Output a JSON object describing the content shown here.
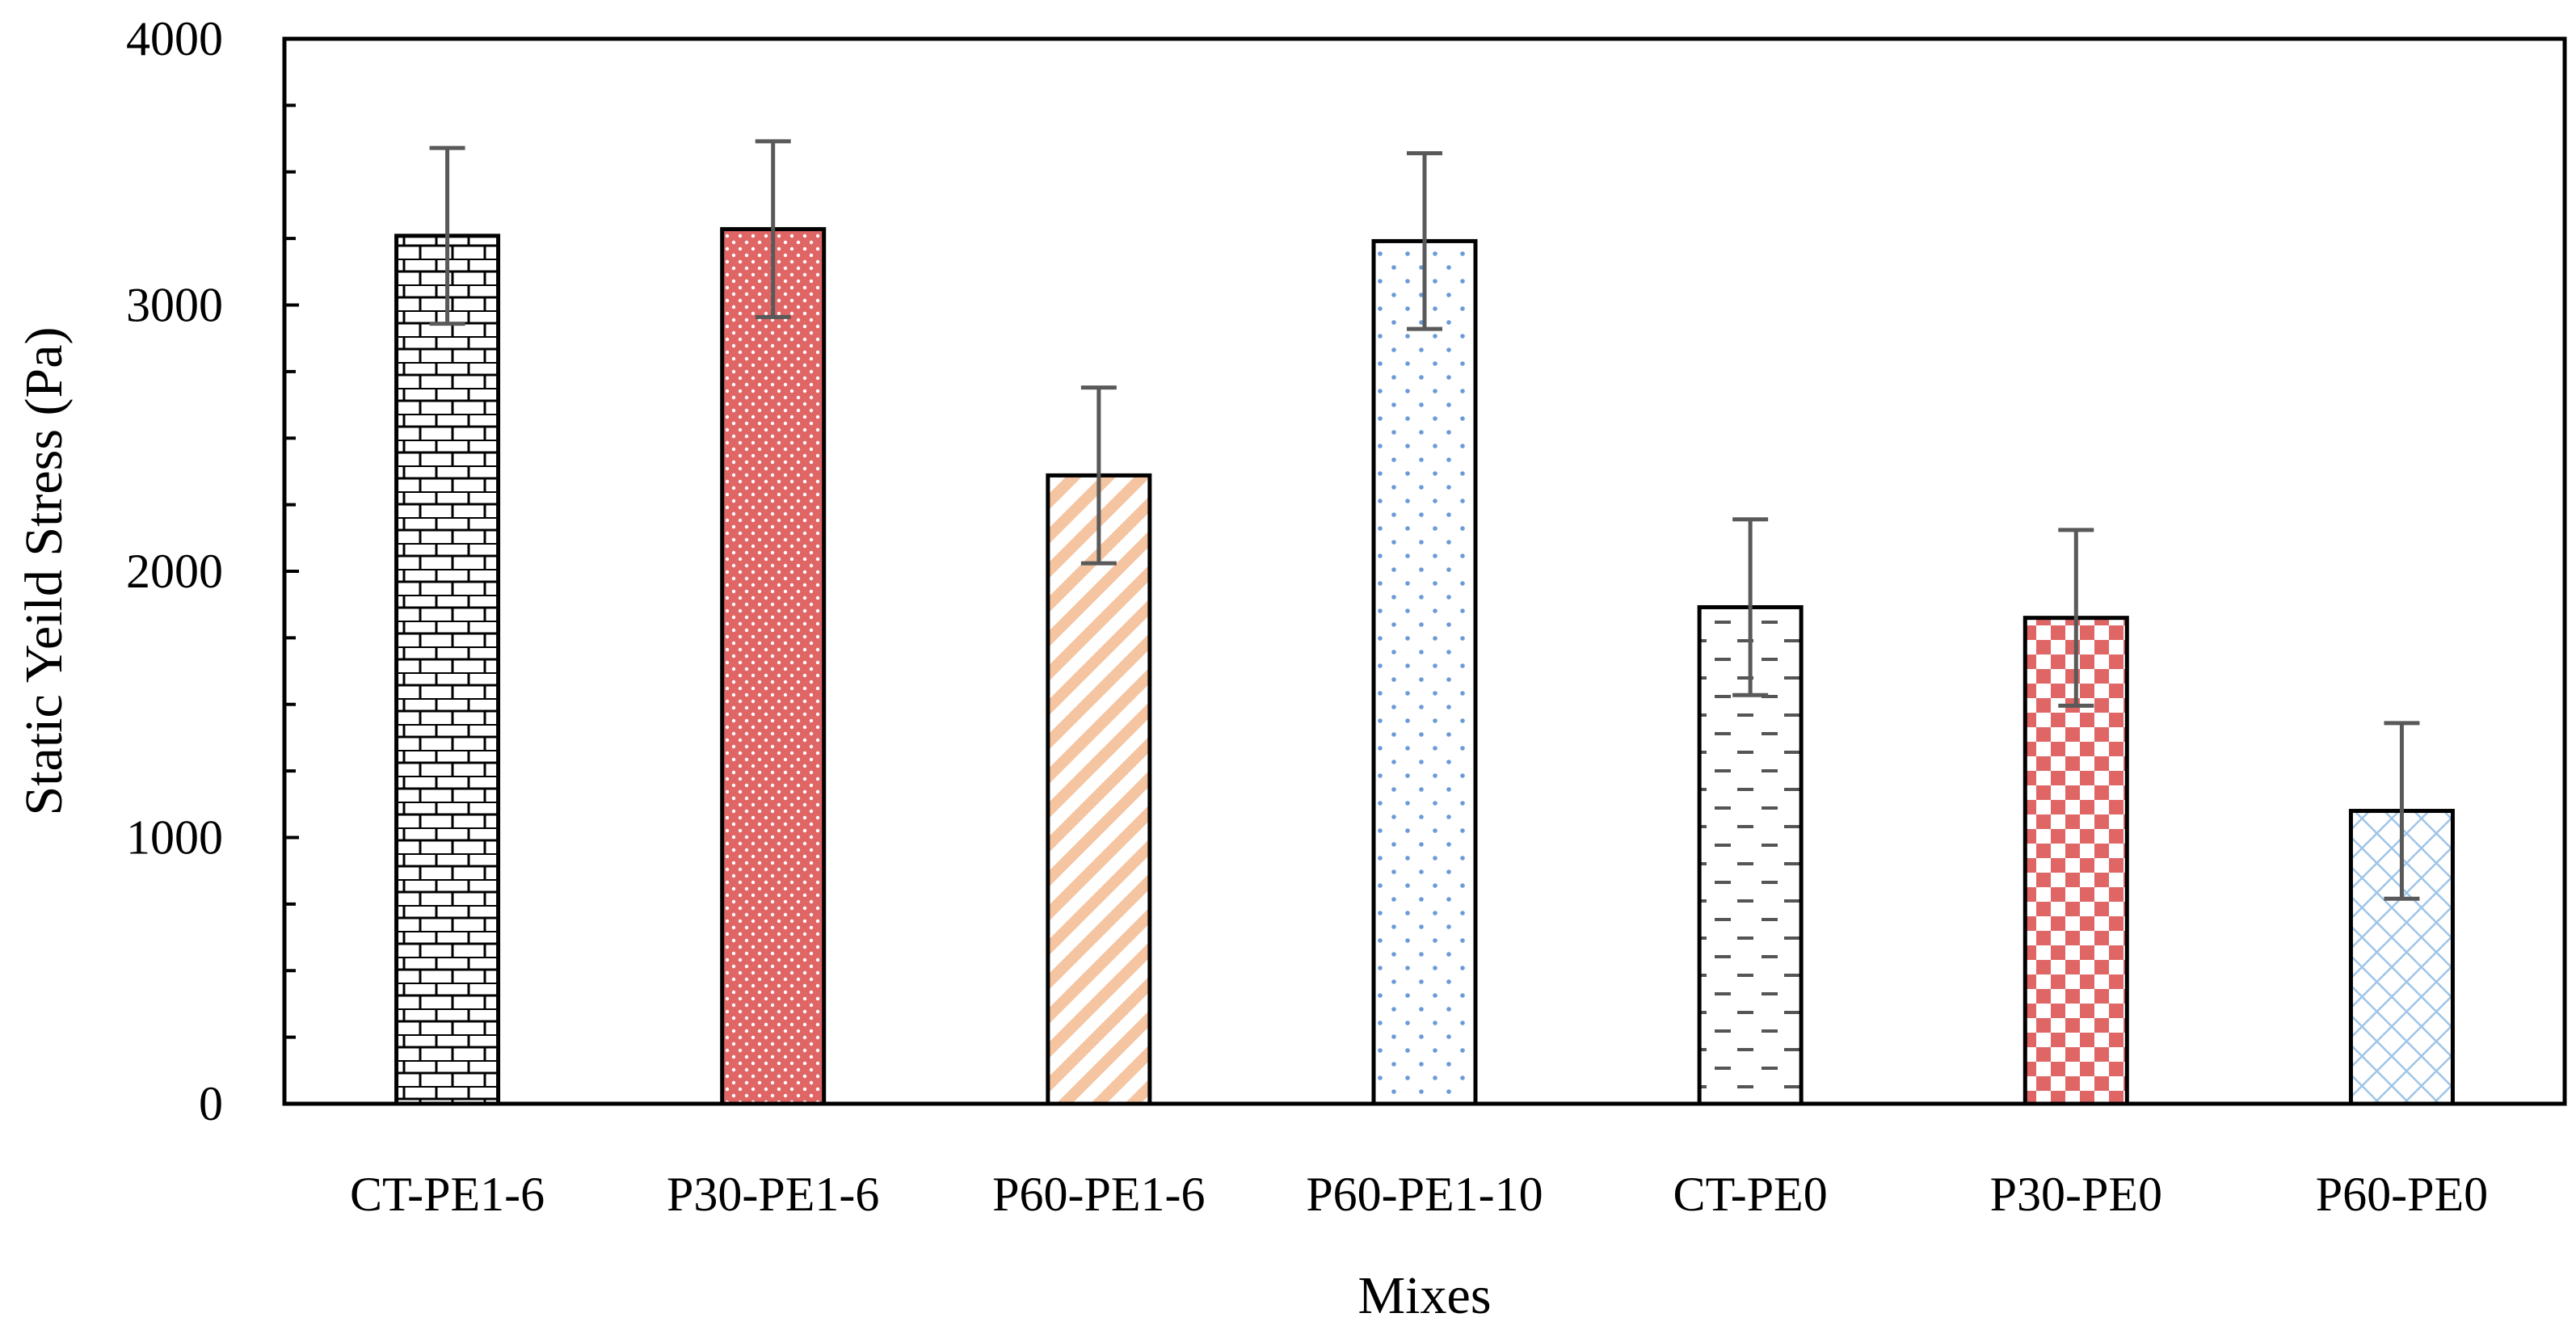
{
  "chart_data": {
    "type": "bar",
    "title": "",
    "xlabel": "Mixes",
    "ylabel": "Static Yeild Stress (Pa)",
    "ylim": [
      0,
      4000
    ],
    "yticks": [
      0,
      1000,
      2000,
      3000,
      4000
    ],
    "ytick_labels": [
      "0",
      "1000",
      "2000",
      "3000",
      "4000"
    ],
    "y_minor_step": 250,
    "grid": false,
    "legend": "none",
    "categories": [
      "CT-PE1-6",
      "P30-PE1-6",
      "P60-PE1-6",
      "P60-PE1-10",
      "CT-PE0",
      "P30-PE0",
      "P60-PE0"
    ],
    "values": [
      3260,
      3285,
      2360,
      3240,
      1865,
      1825,
      1100
    ],
    "error_bars": [
      330,
      330,
      330,
      330,
      330,
      330,
      330
    ],
    "bar_patterns": [
      "brick",
      "dots-red",
      "diagonal-peach",
      "dots-blue",
      "dashes",
      "checker-red",
      "lattice-blue"
    ],
    "colors": {
      "axis": "#000000",
      "error_bar": "#595959",
      "red": "#e06666",
      "peach": "#f5c4a0",
      "blue": "#6a9ad8",
      "light_blue": "#9fc5e8",
      "gray": "#555555"
    }
  }
}
